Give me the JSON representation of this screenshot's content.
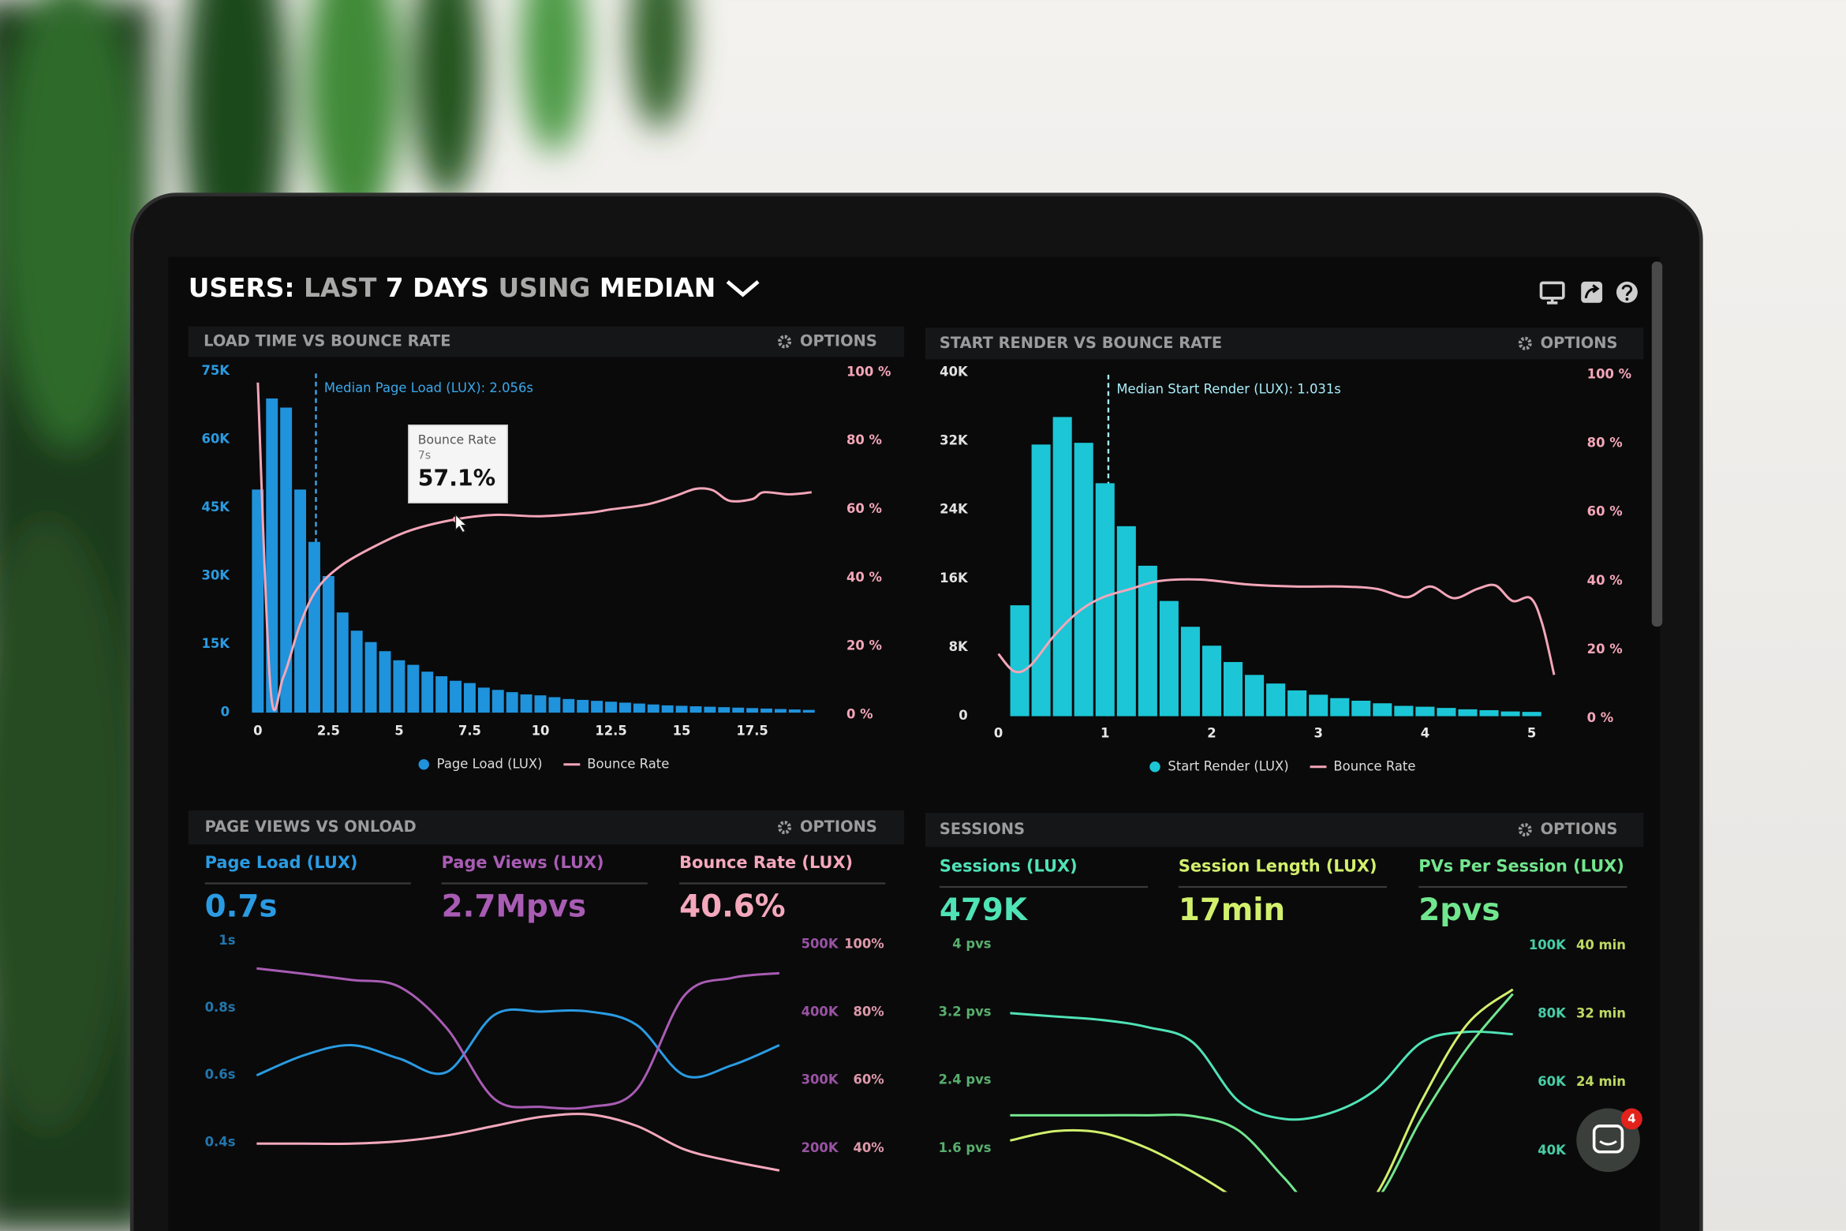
{
  "header": {
    "title": [
      "USERS:",
      "LAST",
      "7 DAYS",
      "USING",
      "MEDIAN"
    ]
  },
  "widget": {
    "badge": "4"
  },
  "chart_data": [
    {
      "type": "histogram",
      "title": "LOAD TIME VS BOUNCE RATE",
      "options": "OPTIONS",
      "bins": [
        -0.25,
        0.25,
        0.75,
        1.25,
        1.75,
        2.25,
        2.75,
        3.25,
        3.75,
        4.25,
        4.75,
        5.25,
        5.75,
        6.25,
        6.75,
        7.25,
        7.75,
        8.25,
        8.75,
        9.25,
        9.75,
        10.25,
        10.75,
        11.25,
        11.75,
        12.25,
        12.75,
        13.25,
        13.75,
        14.25,
        14.75,
        15.25,
        15.75,
        16.25,
        16.75,
        17.25,
        17.75,
        18.25,
        18.75,
        19.25,
        19.75
      ],
      "series": [
        {
          "name": "Page Load (LUX)",
          "color": "#1f93dc",
          "values": [
            49000,
            69000,
            67000,
            49000,
            37500,
            30000,
            22000,
            18000,
            15500,
            13500,
            11500,
            10500,
            9000,
            8000,
            7000,
            6500,
            5500,
            5000,
            4500,
            4000,
            3800,
            3400,
            3000,
            2800,
            2600,
            2400,
            2200,
            2000,
            1800,
            1600,
            1500,
            1400,
            1300,
            1200,
            1100,
            1000,
            900,
            800,
            700,
            600
          ]
        },
        {
          "name": "Bounce Rate",
          "color": "#f4a6b8",
          "axis": "y2",
          "x": [
            0,
            0.45,
            0.9,
            1.5,
            2.1,
            2.95,
            4.2,
            5.45,
            7,
            8.4,
            10,
            11.7,
            12.5,
            13.8,
            14.8,
            15.5,
            16.1,
            16.7,
            17.5,
            17.9,
            18.8,
            19.6
          ],
          "values": [
            97,
            7.6,
            11,
            26.5,
            36.8,
            43.6,
            49.5,
            54,
            57.1,
            58.4,
            58,
            59,
            60,
            61.5,
            64,
            66,
            65.6,
            62.5,
            63,
            65,
            64.4,
            65
          ]
        }
      ],
      "xlim": [
        -0.3,
        20
      ],
      "xticks": [
        0,
        2.5,
        5,
        7.5,
        10,
        12.5,
        15,
        17.5
      ],
      "ylim": [
        0,
        75000
      ],
      "yticks": [
        0,
        {
          "value": 15000,
          "label": "15K"
        },
        {
          "value": 30000,
          "label": "30K"
        },
        {
          "value": 45000,
          "label": "45K"
        },
        {
          "value": 60000,
          "label": "60K"
        },
        {
          "value": 75000,
          "label": "75K"
        }
      ],
      "y2lim": [
        0,
        100
      ],
      "y2ticks": [
        {
          "value": 0,
          "label": "0 %"
        },
        {
          "value": 20,
          "label": "20 %"
        },
        {
          "value": 40,
          "label": "40 %"
        },
        {
          "value": 60,
          "label": "60 %"
        },
        {
          "value": 80,
          "label": "80 %"
        },
        {
          "value": 100,
          "label": "100 %"
        }
      ],
      "median": {
        "x": 2.056,
        "label": "Median Page Load (LUX): 2.056s"
      },
      "tooltip": {
        "title": "Bounce Rate",
        "x_label": "7s",
        "x": 7,
        "value": 57.1,
        "value_label": "57.1%"
      }
    },
    {
      "type": "histogram",
      "title": "START RENDER VS BOUNCE RATE",
      "options": "OPTIONS",
      "bins": [
        0.1,
        0.3,
        0.5,
        0.7,
        0.9,
        1.1,
        1.3,
        1.5,
        1.7,
        1.9,
        2.1,
        2.3,
        2.5,
        2.7,
        2.9,
        3.1,
        3.3,
        3.5,
        3.7,
        3.9,
        4.1,
        4.3,
        4.5,
        4.7,
        4.9,
        5.1
      ],
      "series": [
        {
          "name": "Start Render (LUX)",
          "color": "#1cc6d6",
          "values": [
            12900,
            31600,
            34800,
            31800,
            27100,
            22100,
            17500,
            13400,
            10400,
            8200,
            6300,
            4800,
            3800,
            3000,
            2500,
            2100,
            1800,
            1500,
            1200,
            1100,
            960,
            800,
            700,
            550,
            500
          ]
        },
        {
          "name": "Bounce Rate",
          "color": "#f4a6b8",
          "axis": "y2",
          "x": [
            0,
            0.15,
            0.3,
            0.52,
            0.74,
            0.96,
            1.24,
            1.51,
            1.9,
            2.34,
            2.78,
            3.22,
            3.55,
            3.83,
            4.05,
            4.27,
            4.49,
            4.66,
            4.82,
            4.99,
            5.1,
            5.21
          ],
          "values": [
            18.8,
            13.7,
            15.4,
            24,
            30.8,
            35,
            37.7,
            40,
            40.4,
            39,
            38.4,
            38.4,
            37.7,
            35.3,
            38.4,
            35,
            37.7,
            38.7,
            34.2,
            35,
            27.4,
            12.7
          ]
        }
      ],
      "xlim": [
        -0.05,
        5.25
      ],
      "xticks": [
        0,
        1,
        2,
        3,
        4,
        5
      ],
      "ylim": [
        0,
        40000
      ],
      "yticks": [
        0,
        {
          "value": 8000,
          "label": "8K"
        },
        {
          "value": 16000,
          "label": "16K"
        },
        {
          "value": 24000,
          "label": "24K"
        },
        {
          "value": 32000,
          "label": "32K"
        },
        {
          "value": 40000,
          "label": "40K"
        }
      ],
      "y2lim": [
        0,
        100
      ],
      "y2ticks": [
        {
          "value": 0,
          "label": "0 %"
        },
        {
          "value": 20,
          "label": "20 %"
        },
        {
          "value": 40,
          "label": "40 %"
        },
        {
          "value": 60,
          "label": "60 %"
        },
        {
          "value": 80,
          "label": "80 %"
        },
        {
          "value": 100,
          "label": "100 %"
        }
      ],
      "median": {
        "x": 1.031,
        "label": "Median Start Render (LUX): 1.031s"
      }
    },
    {
      "type": "line",
      "title": "PAGE VIEWS VS ONLOAD",
      "options": "OPTIONS",
      "categories": [
        null,
        null,
        null,
        null,
        null,
        null,
        null,
        null,
        null,
        null,
        null,
        null
      ],
      "series": [
        {
          "name": "Page Load (LUX)",
          "value": "0.7s",
          "color": "#2a9be2",
          "axis": "y",
          "values": [
            0.6,
            0.66,
            0.69,
            0.65,
            0.61,
            0.78,
            0.79,
            0.79,
            0.75,
            0.6,
            0.63,
            0.69
          ]
        },
        {
          "name": "Page Views (LUX)",
          "value": "2.7Mpvs",
          "color": "#a95cb4",
          "axis": "y2",
          "values": [
            465000,
            457000,
            448000,
            438000,
            377000,
            273000,
            261000,
            261000,
            287000,
            425000,
            451000,
            458000
          ]
        },
        {
          "name": "Bounce Rate (LUX)",
          "value": "40.6%",
          "color": "#f4a8bc",
          "axis": "y3",
          "values": [
            41.4,
            41.4,
            41.4,
            42.1,
            43.8,
            46.6,
            49.3,
            50,
            46.6,
            39.7,
            36.2,
            33.5
          ]
        }
      ],
      "ylim": [
        0.4,
        1
      ],
      "yticks": [
        {
          "value": 1,
          "label": "1s"
        },
        {
          "value": 0.8,
          "label": "0.8s"
        },
        {
          "value": 0.6,
          "label": "0.6s"
        },
        {
          "value": 0.4,
          "label": "0.4s"
        }
      ],
      "y2lim": [
        200000,
        500000
      ],
      "y2ticks": [
        {
          "value": 500000,
          "label": "500K"
        },
        {
          "value": 400000,
          "label": "400K"
        },
        {
          "value": 300000,
          "label": "300K"
        },
        {
          "value": 200000,
          "label": "200K"
        }
      ],
      "y3lim": [
        40,
        100
      ],
      "y3ticks": [
        {
          "value": 100,
          "label": "100%"
        },
        {
          "value": 80,
          "label": "80%"
        },
        {
          "value": 60,
          "label": "60%"
        },
        {
          "value": 40,
          "label": "40%"
        }
      ]
    },
    {
      "type": "line",
      "title": "SESSIONS",
      "options": "OPTIONS",
      "categories": [
        null,
        null,
        null,
        null,
        null,
        null,
        null,
        null,
        null,
        null,
        null,
        null
      ],
      "series": [
        {
          "name": "Sessions (LUX)",
          "value": "479K",
          "color": "#4fe3b5",
          "axis": "y2",
          "values": [
            80300,
            79300,
            78300,
            76200,
            71700,
            54500,
            49300,
            51000,
            57900,
            71700,
            74800,
            74100
          ]
        },
        {
          "name": "Session Length (LUX)",
          "value": "17min",
          "color": "#d2f06c",
          "axis": "y3",
          "values": [
            17.2,
            18.3,
            18.1,
            16.3,
            13.5,
            10.1,
            5.9,
            5.9,
            10.8,
            21.8,
            30.8,
            34.9
          ]
        },
        {
          "name": "PVs Per Session (LUX)",
          "value": "2pvs",
          "color": "#72e68e",
          "axis": "y",
          "values": [
            1.99,
            1.99,
            1.99,
            1.99,
            1.98,
            1.81,
            1.25,
            0.7,
            0.98,
            1.95,
            2.78,
            3.42
          ]
        }
      ],
      "ylim": [
        1.6,
        4
      ],
      "yticks": [
        {
          "value": 4,
          "label": "4 pvs"
        },
        {
          "value": 3.2,
          "label": "3.2 pvs"
        },
        {
          "value": 2.4,
          "label": "2.4 pvs"
        },
        {
          "value": 1.6,
          "label": "1.6 pvs"
        }
      ],
      "y2lim": [
        40000,
        100000
      ],
      "y2ticks": [
        {
          "value": 100000,
          "label": "100K"
        },
        {
          "value": 80000,
          "label": "80K"
        },
        {
          "value": 60000,
          "label": "60K"
        },
        {
          "value": 40000,
          "label": "40K"
        }
      ],
      "y3lim": [
        24,
        40
      ],
      "y3ticks": [
        {
          "value": 40,
          "label": "40 min"
        },
        {
          "value": 32,
          "label": "32 min"
        },
        {
          "value": 24,
          "label": "24 min"
        }
      ]
    }
  ]
}
